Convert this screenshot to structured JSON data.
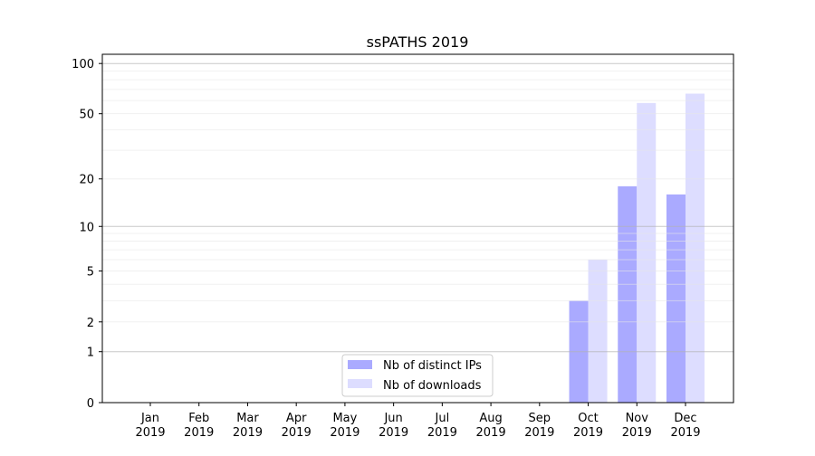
{
  "chart_data": {
    "type": "bar",
    "title": "ssPATHS 2019",
    "xlabel": "",
    "ylabel": "",
    "yscale": "log(1+y)",
    "ylim": [
      0,
      110
    ],
    "yticks": [
      0,
      1,
      2,
      5,
      10,
      20,
      50,
      100
    ],
    "grid": true,
    "legend_position": "bottom-center",
    "categories": [
      [
        "Jan",
        "2019"
      ],
      [
        "Feb",
        "2019"
      ],
      [
        "Mar",
        "2019"
      ],
      [
        "Apr",
        "2019"
      ],
      [
        "May",
        "2019"
      ],
      [
        "Jun",
        "2019"
      ],
      [
        "Jul",
        "2019"
      ],
      [
        "Aug",
        "2019"
      ],
      [
        "Sep",
        "2019"
      ],
      [
        "Oct",
        "2019"
      ],
      [
        "Nov",
        "2019"
      ],
      [
        "Dec",
        "2019"
      ]
    ],
    "series": [
      {
        "name": "Nb of distinct IPs",
        "color": "#aaaaff",
        "values": [
          0,
          0,
          0,
          0,
          0,
          0,
          0,
          0,
          0,
          3,
          18,
          16
        ]
      },
      {
        "name": "Nb of downloads",
        "color": "#ddddff",
        "values": [
          0,
          0,
          0,
          0,
          0,
          0,
          0,
          0,
          0,
          6,
          58,
          66
        ]
      }
    ]
  }
}
